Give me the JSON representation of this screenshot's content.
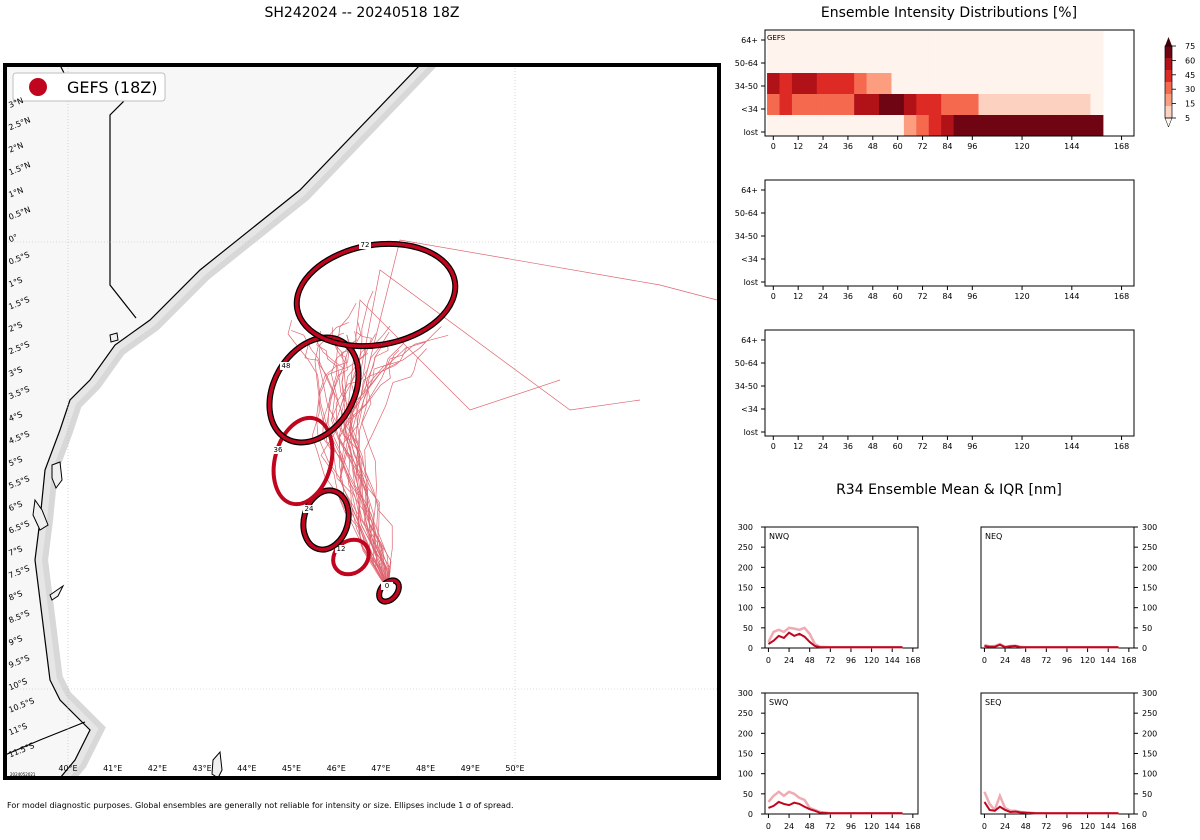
{
  "map": {
    "title": "SH242024 -- 20240518 18Z",
    "legend_label": "GEFS (18Z)",
    "legend_color": "#c0061e",
    "footnote": "For model diagnostic purposes. Global ensembles are generally not reliable for intensity or size. Ellipses include 1 σ of spread.",
    "stamp": "2024052021",
    "lon_labels": [
      "40°E",
      "41°E",
      "42°E",
      "43°E",
      "44°E",
      "45°E",
      "46°E",
      "47°E",
      "48°E",
      "49°E",
      "50°E"
    ],
    "lat_labels": [
      "3°N",
      "2.5°N",
      "2°N",
      "1.5°N",
      "1°N",
      "0.5°N",
      "0°",
      "0.5°S",
      "1°S",
      "1.5°S",
      "2°S",
      "2.5°S",
      "3°S",
      "3.5°S",
      "4°S",
      "4.5°S",
      "5°S",
      "5.5°S",
      "6°S",
      "6.5°S",
      "7°S",
      "7.5°S",
      "8°S",
      "8.5°S",
      "9°S",
      "9.5°S",
      "10°S",
      "10.5°S",
      "11°S",
      "11.5°S"
    ],
    "ellipse_labels": [
      "0",
      "12",
      "24",
      "36",
      "48",
      "72"
    ],
    "ellipse_hours": [
      0,
      12,
      24,
      36,
      48,
      72
    ]
  },
  "intensity": {
    "title": "Ensemble Intensity Distributions [%]",
    "model_label": "GEFS",
    "y_labels": [
      "64+",
      "50-64",
      "34-50",
      "<34",
      "lost"
    ],
    "x_labels": [
      "0",
      "12",
      "24",
      "36",
      "48",
      "60",
      "72",
      "84",
      "96",
      "120",
      "144",
      "168"
    ],
    "colorbar_labels": [
      "75",
      "60",
      "45",
      "30",
      "15",
      "5"
    ]
  },
  "r34": {
    "title": "R34 Ensemble Mean & IQR [nm]",
    "panels": [
      "NWQ",
      "NEQ",
      "SWQ",
      "SEQ"
    ],
    "y_labels": [
      "300",
      "250",
      "200",
      "150",
      "100",
      "50",
      "0"
    ],
    "x_labels": [
      "0",
      "24",
      "48",
      "72",
      "96",
      "120",
      "144",
      "168"
    ]
  },
  "chart_data": [
    {
      "type": "heatmap",
      "title": "Ensemble Intensity Distributions [%]",
      "panel": "GEFS",
      "x_hours": [
        0,
        6,
        12,
        18,
        24,
        30,
        36,
        42,
        48,
        54,
        60,
        66,
        72,
        78,
        84,
        90,
        96,
        102,
        108,
        114,
        120,
        126,
        132,
        138,
        144,
        150,
        156
      ],
      "y_categories": [
        "64+",
        "50-64",
        "34-50",
        "<34",
        "lost"
      ],
      "values": {
        "64+": [
          3,
          3,
          3,
          3,
          3,
          3,
          3,
          3,
          3,
          3,
          3,
          3,
          3,
          3,
          3,
          3,
          3,
          3,
          3,
          3,
          3,
          3,
          3,
          3,
          3,
          3,
          3
        ],
        "50-64": [
          3,
          3,
          3,
          3,
          3,
          3,
          3,
          3,
          3,
          3,
          3,
          3,
          3,
          3,
          3,
          3,
          3,
          3,
          3,
          3,
          3,
          3,
          3,
          3,
          3,
          3,
          3
        ],
        "34-50": [
          70,
          55,
          60,
          60,
          45,
          45,
          45,
          35,
          25,
          15,
          3,
          3,
          3,
          3,
          3,
          3,
          3,
          3,
          3,
          3,
          3,
          3,
          3,
          3,
          3,
          3,
          3
        ],
        "<34": [
          35,
          55,
          35,
          30,
          35,
          35,
          35,
          60,
          60,
          75,
          75,
          60,
          50,
          55,
          30,
          30,
          30,
          10,
          10,
          10,
          10,
          10,
          10,
          10,
          10,
          10,
          3
        ],
        "lost": [
          3,
          3,
          3,
          3,
          3,
          3,
          3,
          3,
          3,
          3,
          3,
          20,
          30,
          45,
          60,
          80,
          80,
          80,
          80,
          80,
          80,
          80,
          80,
          80,
          80,
          80,
          80
        ]
      },
      "colorbar": [
        5,
        15,
        30,
        45,
        60,
        75
      ],
      "xlim": [
        -4,
        174
      ]
    },
    {
      "type": "line",
      "title": "R34 Ensemble Mean & IQR [nm]",
      "panels": [
        {
          "name": "NWQ",
          "x": [
            0,
            6,
            12,
            18,
            24,
            30,
            36,
            42,
            48,
            54,
            60,
            72,
            96,
            120,
            144,
            156
          ],
          "mean": [
            10,
            18,
            30,
            25,
            38,
            30,
            35,
            28,
            15,
            5,
            2,
            2,
            2,
            2,
            2,
            2
          ],
          "iqr_upper": [
            15,
            40,
            45,
            40,
            50,
            48,
            45,
            50,
            35,
            10,
            3,
            2,
            2,
            2,
            2,
            2
          ]
        },
        {
          "name": "NEQ",
          "x": [
            0,
            6,
            12,
            18,
            24,
            30,
            36,
            42,
            48,
            60,
            72,
            96,
            120,
            144,
            156
          ],
          "mean": [
            5,
            3,
            3,
            8,
            2,
            4,
            5,
            2,
            2,
            2,
            2,
            2,
            2,
            2,
            2
          ],
          "iqr_upper": [
            8,
            4,
            5,
            10,
            3,
            5,
            6,
            3,
            2,
            2,
            2,
            2,
            2,
            2,
            2
          ]
        },
        {
          "name": "SWQ",
          "x": [
            0,
            6,
            12,
            18,
            24,
            30,
            36,
            42,
            48,
            54,
            60,
            72,
            96,
            120,
            144,
            156
          ],
          "mean": [
            15,
            20,
            30,
            25,
            22,
            28,
            25,
            18,
            12,
            8,
            3,
            2,
            2,
            2,
            2,
            2
          ],
          "iqr_upper": [
            30,
            45,
            55,
            45,
            55,
            50,
            40,
            35,
            15,
            10,
            5,
            2,
            2,
            2,
            2,
            2
          ]
        },
        {
          "name": "SEQ",
          "x": [
            0,
            6,
            12,
            18,
            24,
            30,
            36,
            42,
            48,
            60,
            72,
            96,
            120,
            144,
            156
          ],
          "mean": [
            30,
            10,
            8,
            18,
            10,
            5,
            6,
            4,
            3,
            2,
            2,
            2,
            2,
            2,
            2
          ],
          "iqr_upper": [
            55,
            25,
            10,
            45,
            15,
            8,
            8,
            5,
            4,
            2,
            2,
            2,
            2,
            2,
            2
          ]
        }
      ],
      "ylim": [
        0,
        300
      ],
      "xlim": [
        -4,
        174
      ]
    }
  ]
}
